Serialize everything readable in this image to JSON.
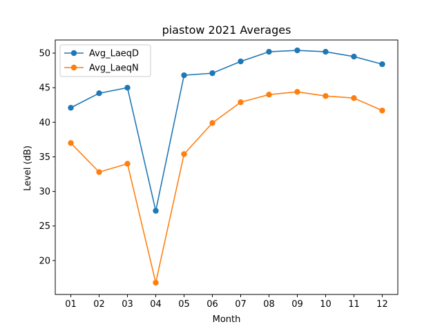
{
  "chart_data": {
    "type": "line",
    "title": "piastow 2021 Averages",
    "xlabel": "Month",
    "ylabel": "Level (dB)",
    "categories": [
      "01",
      "02",
      "03",
      "04",
      "05",
      "06",
      "07",
      "08",
      "09",
      "10",
      "11",
      "12"
    ],
    "ylim": [
      15.1,
      51.9
    ],
    "yticks": [
      20,
      25,
      30,
      35,
      40,
      45,
      50
    ],
    "grid": false,
    "legend_position": "upper-left",
    "marker": "circle",
    "series": [
      {
        "name": "Avg_LaeqD",
        "color": "#1f77b4",
        "values": [
          42.1,
          44.2,
          45.0,
          27.2,
          46.8,
          47.1,
          48.8,
          50.2,
          50.4,
          50.2,
          49.5,
          48.4
        ]
      },
      {
        "name": "Avg_LaeqN",
        "color": "#ff7f0e",
        "values": [
          37.0,
          32.8,
          34.0,
          16.8,
          35.4,
          39.9,
          42.9,
          44.0,
          44.4,
          43.8,
          43.5,
          41.7
        ]
      }
    ]
  }
}
